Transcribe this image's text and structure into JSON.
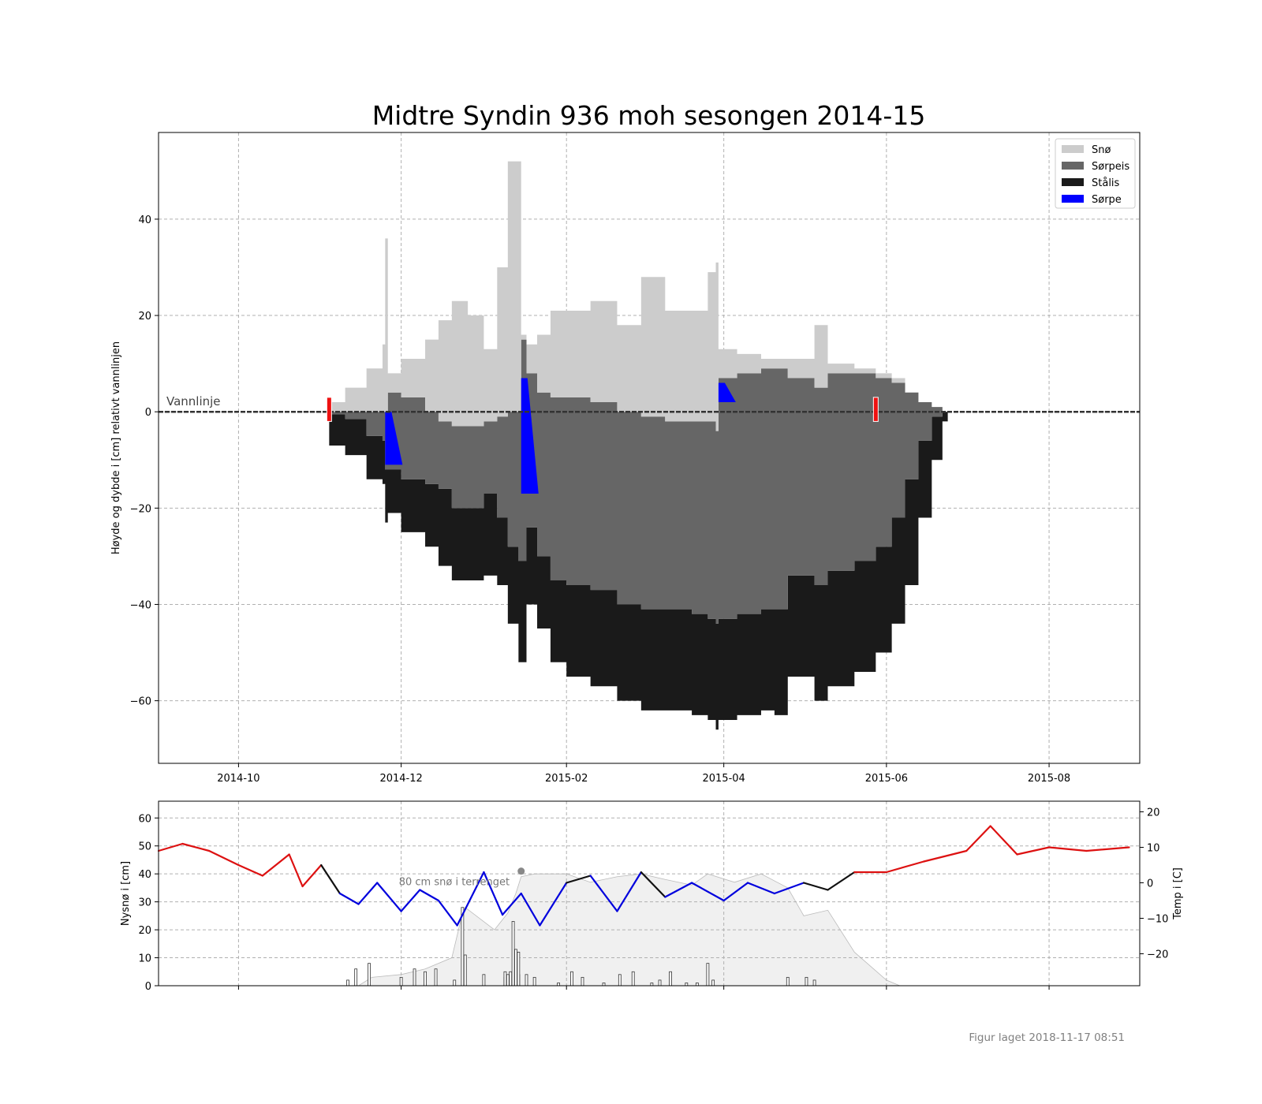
{
  "title": "Midtre Syndin 936 moh sesongen 2014-15",
  "footer": "Figur laget 2018-11-17 08:51",
  "colors": {
    "snow": "#cccccc",
    "slush_ice": "#666666",
    "black_ice": "#1a1a1a",
    "slush": "#0000ff",
    "warm": "#dd1111",
    "cold": "#0000dd",
    "neutral": "#111111",
    "terrain_snow": "#f0f0f0",
    "grid": "#b0b0b0"
  },
  "chart_data": [
    {
      "type": "area",
      "title": "Midtre Syndin 936 moh sesongen 2014-15",
      "ylabel": "Høyde og dybde i [cm] relativt vannlinjen",
      "xlabel": "",
      "x_ticks": [
        "2014-10",
        "2014-12",
        "2015-02",
        "2015-04",
        "2015-06",
        "2015-08"
      ],
      "y_ticks": [
        -60,
        -40,
        -20,
        0,
        20,
        40
      ],
      "xlim": [
        "2014-09-01",
        "2015-09-04"
      ],
      "ylim": [
        -73,
        58
      ],
      "grid": true,
      "legend_position": "top-right",
      "legend": [
        "Snø",
        "Sørpeis",
        "Stålis",
        "Sørpe"
      ],
      "annotation": "Vannlinje",
      "x": [
        "2014-11-04",
        "2014-11-10",
        "2014-11-18",
        "2014-11-24",
        "2014-11-25",
        "2014-11-26",
        "2014-12-01",
        "2014-12-10",
        "2014-12-15",
        "2014-12-20",
        "2014-12-26",
        "2015-01-01",
        "2015-01-06",
        "2015-01-10",
        "2015-01-14",
        "2015-01-15",
        "2015-01-17",
        "2015-01-21",
        "2015-01-26",
        "2015-02-01",
        "2015-02-10",
        "2015-02-20",
        "2015-03-01",
        "2015-03-10",
        "2015-03-20",
        "2015-03-26",
        "2015-03-29",
        "2015-03-30",
        "2015-04-06",
        "2015-04-15",
        "2015-04-20",
        "2015-04-25",
        "2015-05-05",
        "2015-05-10",
        "2015-05-20",
        "2015-05-28",
        "2015-06-03",
        "2015-06-08",
        "2015-06-13",
        "2015-06-18",
        "2015-06-22",
        "2015-06-24"
      ],
      "series": [
        {
          "name": "Stålis",
          "bottom": [
            -7,
            -9,
            -14,
            -15,
            -23,
            -21,
            -25,
            -28,
            -32,
            -35,
            -35,
            -34,
            -36,
            -44,
            -52,
            -52,
            -40,
            -45,
            -52,
            -55,
            -57,
            -60,
            -62,
            -62,
            -63,
            -64,
            -66,
            -64,
            -63,
            -62,
            -63,
            -55,
            -60,
            -57,
            -54,
            -50,
            -44,
            -36,
            -22,
            -10,
            -2,
            0
          ],
          "top": [
            -0.5,
            -1.5,
            -5,
            -6,
            -12,
            -12,
            -14,
            -15,
            -16,
            -20,
            -20,
            -17,
            -22,
            -28,
            -31,
            -31,
            -24,
            -30,
            -35,
            -36,
            -37,
            -40,
            -41,
            -41,
            -42,
            -43,
            -44,
            -43,
            -42,
            -41,
            -41,
            -34,
            -36,
            -33,
            -31,
            -28,
            -22,
            -14,
            -6,
            -1,
            0,
            0
          ]
        },
        {
          "name": "Sørpeis",
          "bottom": [
            -0.5,
            -1.5,
            -5,
            -6,
            -12,
            -12,
            -14,
            -15,
            -16,
            -20,
            -20,
            -17,
            -22,
            -28,
            -31,
            -31,
            -24,
            -30,
            -35,
            -36,
            -37,
            -40,
            -41,
            -41,
            -42,
            -43,
            -44,
            -43,
            -42,
            -41,
            -41,
            -34,
            -36,
            -33,
            -31,
            -28,
            -22,
            -14,
            -6,
            -1,
            0,
            0
          ],
          "top": [
            0,
            0,
            0,
            0,
            0,
            4,
            3,
            0,
            -2,
            -3,
            -3,
            -2,
            -1,
            0,
            0,
            15,
            8,
            4,
            3,
            3,
            2,
            0,
            -1,
            -2,
            -2,
            -2,
            -4,
            7,
            8,
            9,
            9,
            7,
            5,
            8,
            8,
            7,
            6,
            4,
            2,
            1,
            0,
            0
          ]
        },
        {
          "name": "Snø",
          "bottom": [
            0,
            0,
            0,
            0,
            0,
            4,
            3,
            0,
            -2,
            -3,
            -3,
            -2,
            -1,
            0,
            0,
            15,
            8,
            4,
            3,
            3,
            2,
            0,
            -1,
            -2,
            -2,
            -2,
            -4,
            7,
            8,
            9,
            9,
            7,
            5,
            8,
            8,
            7,
            6,
            4,
            2,
            1,
            0,
            0
          ],
          "top": [
            2,
            5,
            9,
            14,
            36,
            8,
            11,
            15,
            19,
            23,
            20,
            13,
            30,
            52,
            52,
            16,
            14,
            16,
            21,
            21,
            23,
            18,
            28,
            21,
            21,
            29,
            31,
            13,
            12,
            11,
            11,
            11,
            18,
            10,
            9,
            8,
            7,
            4,
            2,
            1,
            0,
            0
          ]
        }
      ],
      "slush_events": [
        {
          "date": "2014-11-25",
          "top": 0,
          "bottom": -11
        },
        {
          "date": "2015-01-15",
          "top": 7,
          "bottom": -17
        },
        {
          "date": "2015-03-30",
          "top": 6,
          "bottom": 2
        }
      ],
      "markers": [
        "2014-11-04",
        "2015-05-28"
      ]
    },
    {
      "type": "bar",
      "xlabel": "",
      "ylabel": "Nysnø i [cm]",
      "y2label": "Temp i [C]",
      "x_ticks": [
        "2014-10",
        "2014-12",
        "2015-02",
        "2015-04",
        "2015-06",
        "2015-08"
      ],
      "y_ticks": [
        0,
        10,
        20,
        30,
        40,
        50,
        60
      ],
      "y2_ticks": [
        -20,
        -10,
        0,
        10,
        20
      ],
      "ylim": [
        0,
        66
      ],
      "y2lim": [
        -29,
        23
      ],
      "annotation": "80 cm snø i terrenget",
      "new_snow": [
        {
          "date": "2014-11-11",
          "value": 2
        },
        {
          "date": "2014-11-14",
          "value": 6
        },
        {
          "date": "2014-11-19",
          "value": 8
        },
        {
          "date": "2014-12-01",
          "value": 3
        },
        {
          "date": "2014-12-06",
          "value": 6
        },
        {
          "date": "2014-12-10",
          "value": 5
        },
        {
          "date": "2014-12-14",
          "value": 6
        },
        {
          "date": "2014-12-21",
          "value": 2
        },
        {
          "date": "2014-12-24",
          "value": 28
        },
        {
          "date": "2014-12-25",
          "value": 11
        },
        {
          "date": "2015-01-01",
          "value": 4
        },
        {
          "date": "2015-01-09",
          "value": 3
        },
        {
          "date": "2015-01-14",
          "value": 4
        },
        {
          "date": "2015-01-17",
          "value": 4
        },
        {
          "date": "2015-01-20",
          "value": 3
        },
        {
          "date": "2015-01-29",
          "value": 1
        },
        {
          "date": "2015-02-03",
          "value": 5
        },
        {
          "date": "2015-02-07",
          "value": 3
        },
        {
          "date": "2015-02-15",
          "value": 1
        },
        {
          "date": "2015-02-21",
          "value": 4
        },
        {
          "date": "2015-02-26",
          "value": 5
        },
        {
          "date": "2015-03-05",
          "value": 1
        },
        {
          "date": "2015-03-08",
          "value": 2
        },
        {
          "date": "2015-03-12",
          "value": 5
        },
        {
          "date": "2015-03-18",
          "value": 1
        },
        {
          "date": "2015-03-22",
          "value": 1
        },
        {
          "date": "2015-03-26",
          "value": 8
        },
        {
          "date": "2015-03-28",
          "value": 2
        },
        {
          "date": "2015-04-25",
          "value": 3
        },
        {
          "date": "2015-05-02",
          "value": 3
        },
        {
          "date": "2015-05-05",
          "value": 2
        }
      ],
      "snow_bursts": [
        {
          "date": "2015-01-12",
          "value": 23
        },
        {
          "date": "2015-01-13",
          "value": 13
        },
        {
          "date": "2015-01-14",
          "value": 12
        },
        {
          "date": "2015-01-11",
          "value": 5
        },
        {
          "date": "2015-01-10",
          "value": 4
        },
        {
          "date": "2015-01-09",
          "value": 5
        }
      ],
      "terrain_snow": {
        "x": [
          "2014-11-01",
          "2014-11-15",
          "2014-11-20",
          "2014-12-01",
          "2014-12-10",
          "2014-12-20",
          "2014-12-24",
          "2014-12-25",
          "2015-01-05",
          "2015-01-10",
          "2015-01-13",
          "2015-01-15",
          "2015-01-20",
          "2015-02-01",
          "2015-02-10",
          "2015-02-20",
          "2015-03-01",
          "2015-03-10",
          "2015-03-20",
          "2015-03-26",
          "2015-04-05",
          "2015-04-15",
          "2015-04-25",
          "2015-05-01",
          "2015-05-10",
          "2015-05-20",
          "2015-06-01",
          "2015-06-06"
        ],
        "y": [
          0,
          0,
          3,
          4,
          6,
          10,
          26,
          28,
          20,
          26,
          33,
          39,
          40,
          40,
          37,
          39,
          40,
          38,
          36,
          40,
          37,
          40,
          35,
          25,
          27,
          12,
          2,
          0
        ]
      },
      "temperature": {
        "x": [
          "2014-09-01",
          "2014-09-10",
          "2014-09-20",
          "2014-10-01",
          "2014-10-10",
          "2014-10-20",
          "2014-10-25",
          "2014-11-01",
          "2014-11-08",
          "2014-11-15",
          "2014-11-22",
          "2014-12-01",
          "2014-12-08",
          "2014-12-15",
          "2014-12-22",
          "2015-01-01",
          "2015-01-08",
          "2015-01-15",
          "2015-01-22",
          "2015-02-01",
          "2015-02-10",
          "2015-02-20",
          "2015-03-01",
          "2015-03-10",
          "2015-03-20",
          "2015-04-01",
          "2015-04-10",
          "2015-04-20",
          "2015-05-01",
          "2015-05-10",
          "2015-05-20",
          "2015-06-01",
          "2015-06-15",
          "2015-07-01",
          "2015-07-10",
          "2015-07-20",
          "2015-08-01",
          "2015-08-15",
          "2015-08-31"
        ],
        "y": [
          9,
          11,
          9,
          5,
          2,
          8,
          -1,
          5,
          -3,
          -6,
          0,
          -8,
          -2,
          -5,
          -12,
          3,
          -9,
          -3,
          -12,
          0,
          2,
          -8,
          3,
          -4,
          0,
          -5,
          0,
          -3,
          0,
          -2,
          3,
          3,
          6,
          9,
          16,
          8,
          10,
          9,
          10
        ]
      }
    }
  ]
}
